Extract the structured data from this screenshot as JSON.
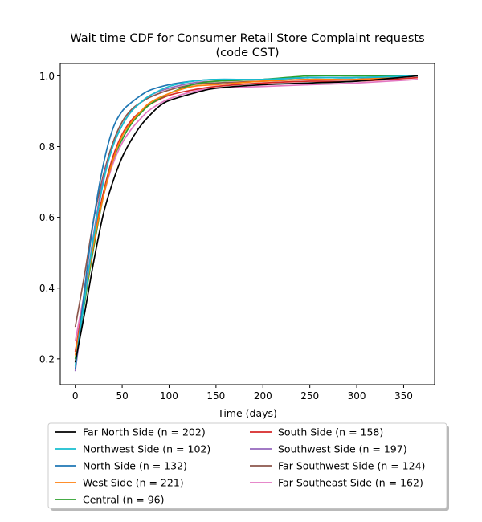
{
  "chart_data": {
    "type": "line",
    "title_line1": "Wait time CDF for Consumer Retail Store Complaint  requests",
    "title_line2": "(code CST)",
    "xlabel": "Time (days)",
    "ylabel": "",
    "xlim": [
      -16,
      383
    ],
    "ylim": [
      0.127,
      1.035
    ],
    "xticks": [
      0,
      50,
      100,
      150,
      200,
      250,
      300,
      350
    ],
    "yticks": [
      0.2,
      0.4,
      0.6,
      0.8,
      1.0
    ],
    "ytick_labels": [
      "0.2",
      "0.4",
      "0.6",
      "0.8",
      "1.0"
    ],
    "grid": false,
    "legend_placement": "below plot, two columns",
    "series": [
      {
        "name": "Far North Side (n = 202)",
        "color": "#000000",
        "x": [
          0,
          10,
          20,
          30,
          40,
          50,
          60,
          70,
          80,
          90,
          100,
          125,
          150,
          200,
          250,
          300,
          365
        ],
        "y": [
          0.19,
          0.33,
          0.48,
          0.61,
          0.7,
          0.77,
          0.82,
          0.86,
          0.89,
          0.915,
          0.93,
          0.95,
          0.965,
          0.975,
          0.98,
          0.985,
          1.0
        ]
      },
      {
        "name": "Northwest Side (n = 102)",
        "color": "#17becf",
        "x": [
          0,
          10,
          20,
          30,
          40,
          50,
          60,
          70,
          80,
          100,
          125,
          150,
          200,
          250,
          300,
          365
        ],
        "y": [
          0.18,
          0.37,
          0.55,
          0.7,
          0.8,
          0.86,
          0.9,
          0.925,
          0.945,
          0.97,
          0.985,
          0.99,
          0.99,
          0.995,
          0.995,
          1.0
        ]
      },
      {
        "name": "North Side (n = 132)",
        "color": "#1f77b4",
        "x": [
          0,
          10,
          20,
          30,
          40,
          50,
          60,
          70,
          80,
          100,
          125,
          150,
          200,
          250,
          300,
          365
        ],
        "y": [
          0.17,
          0.4,
          0.6,
          0.75,
          0.85,
          0.9,
          0.925,
          0.945,
          0.96,
          0.975,
          0.985,
          0.99,
          0.99,
          0.995,
          0.995,
          1.0
        ]
      },
      {
        "name": "West Side (n = 221)",
        "color": "#ff7f0e",
        "x": [
          0,
          10,
          20,
          30,
          40,
          50,
          60,
          70,
          80,
          100,
          125,
          150,
          200,
          250,
          300,
          365
        ],
        "y": [
          0.21,
          0.37,
          0.53,
          0.66,
          0.76,
          0.83,
          0.87,
          0.9,
          0.925,
          0.95,
          0.97,
          0.975,
          0.985,
          0.99,
          0.99,
          1.0
        ]
      },
      {
        "name": "Central (n = 96)",
        "color": "#2ca02c",
        "x": [
          0,
          10,
          20,
          30,
          40,
          50,
          60,
          70,
          80,
          100,
          125,
          150,
          200,
          250,
          300,
          365
        ],
        "y": [
          0.2,
          0.36,
          0.52,
          0.66,
          0.76,
          0.82,
          0.865,
          0.895,
          0.92,
          0.95,
          0.975,
          0.985,
          0.99,
          1.0,
          1.0,
          1.0
        ]
      },
      {
        "name": "South Side (n = 158)",
        "color": "#d62728",
        "x": [
          0,
          10,
          20,
          30,
          40,
          50,
          60,
          70,
          80,
          100,
          125,
          150,
          200,
          250,
          300,
          365
        ],
        "y": [
          0.22,
          0.38,
          0.54,
          0.67,
          0.77,
          0.835,
          0.875,
          0.9,
          0.92,
          0.945,
          0.96,
          0.97,
          0.98,
          0.985,
          0.985,
          0.995
        ]
      },
      {
        "name": "Southwest Side (n = 197)",
        "color": "#9467bd",
        "x": [
          0,
          10,
          20,
          30,
          40,
          50,
          60,
          70,
          80,
          100,
          125,
          150,
          200,
          250,
          300,
          365
        ],
        "y": [
          0.165,
          0.37,
          0.56,
          0.71,
          0.8,
          0.86,
          0.9,
          0.925,
          0.945,
          0.965,
          0.98,
          0.985,
          0.99,
          0.995,
          0.995,
          1.0
        ]
      },
      {
        "name": "Far Southwest Side (n = 124)",
        "color": "#8c564b",
        "x": [
          0,
          10,
          20,
          30,
          40,
          50,
          60,
          70,
          80,
          100,
          125,
          150,
          200,
          250,
          300,
          365
        ],
        "y": [
          0.29,
          0.44,
          0.6,
          0.72,
          0.81,
          0.87,
          0.905,
          0.925,
          0.94,
          0.96,
          0.975,
          0.98,
          0.985,
          0.99,
          0.99,
          1.0
        ]
      },
      {
        "name": "Far Southeast Side (n = 162)",
        "color": "#e377c2",
        "x": [
          0,
          10,
          20,
          30,
          40,
          50,
          60,
          70,
          80,
          100,
          125,
          150,
          200,
          250,
          300,
          365
        ],
        "y": [
          0.25,
          0.39,
          0.54,
          0.66,
          0.75,
          0.81,
          0.85,
          0.88,
          0.905,
          0.935,
          0.955,
          0.965,
          0.97,
          0.975,
          0.98,
          0.99
        ]
      }
    ]
  }
}
